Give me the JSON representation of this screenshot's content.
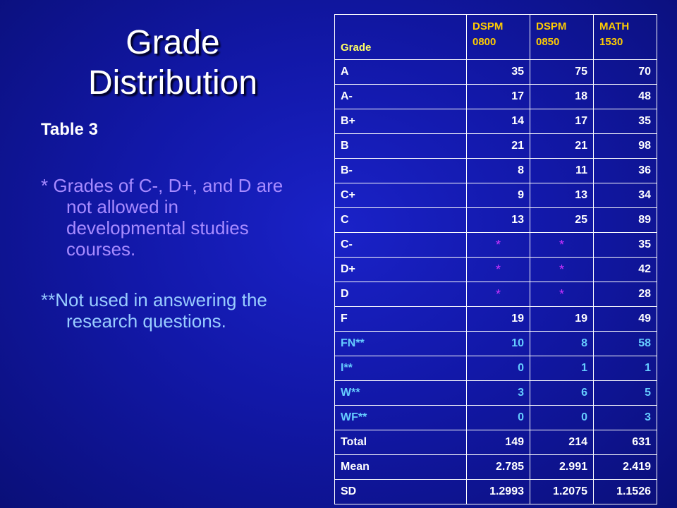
{
  "slide": {
    "title_line1": "Grade",
    "title_line2": "Distribution",
    "subtitle": "Table 3",
    "note1": "* Grades of C-, D+, and D are not allowed in developmental studies courses.",
    "note2": "**Not used in answering the research questions."
  },
  "table": {
    "headers": [
      "Grade",
      "DSPM 0800",
      "DSPM 0850",
      "MATH 1530"
    ],
    "rows": [
      {
        "grade": "A",
        "v": [
          "35",
          "75",
          "70"
        ]
      },
      {
        "grade": "A-",
        "v": [
          "17",
          "18",
          "48"
        ]
      },
      {
        "grade": "B+",
        "v": [
          "14",
          "17",
          "35"
        ]
      },
      {
        "grade": "B",
        "v": [
          "21",
          "21",
          "98"
        ]
      },
      {
        "grade": "B-",
        "v": [
          "8",
          "11",
          "36"
        ]
      },
      {
        "grade": "C+",
        "v": [
          "9",
          "13",
          "34"
        ]
      },
      {
        "grade": "C",
        "v": [
          "13",
          "25",
          "89"
        ]
      },
      {
        "grade": "C-",
        "v": [
          "*",
          "*",
          "35"
        ]
      },
      {
        "grade": "D+",
        "v": [
          "*",
          "*",
          "42"
        ]
      },
      {
        "grade": "D",
        "v": [
          "*",
          "*",
          "28"
        ]
      },
      {
        "grade": "F",
        "v": [
          "19",
          "19",
          "49"
        ]
      },
      {
        "grade": "FN**",
        "v": [
          "10",
          "8",
          "58"
        ]
      },
      {
        "grade": "I**",
        "v": [
          "0",
          "1",
          "1"
        ]
      },
      {
        "grade": "W**",
        "v": [
          "3",
          "6",
          "5"
        ]
      },
      {
        "grade": "WF**",
        "v": [
          "0",
          "0",
          "3"
        ]
      },
      {
        "grade": "Total",
        "v": [
          "149",
          "214",
          "631"
        ]
      },
      {
        "grade": "Mean",
        "v": [
          "2.785",
          "2.991",
          "2.419"
        ]
      },
      {
        "grade": "SD",
        "v": [
          "1.2993",
          "1.2075",
          "1.1526"
        ]
      }
    ]
  },
  "colors": {
    "background": "#1218a8",
    "header_text": "#ffcc00",
    "note1_text": "#a78bff",
    "note2_text": "#99ccff",
    "excluded_rows_text": "#66ccff",
    "asterisk": "#cc33ff"
  }
}
